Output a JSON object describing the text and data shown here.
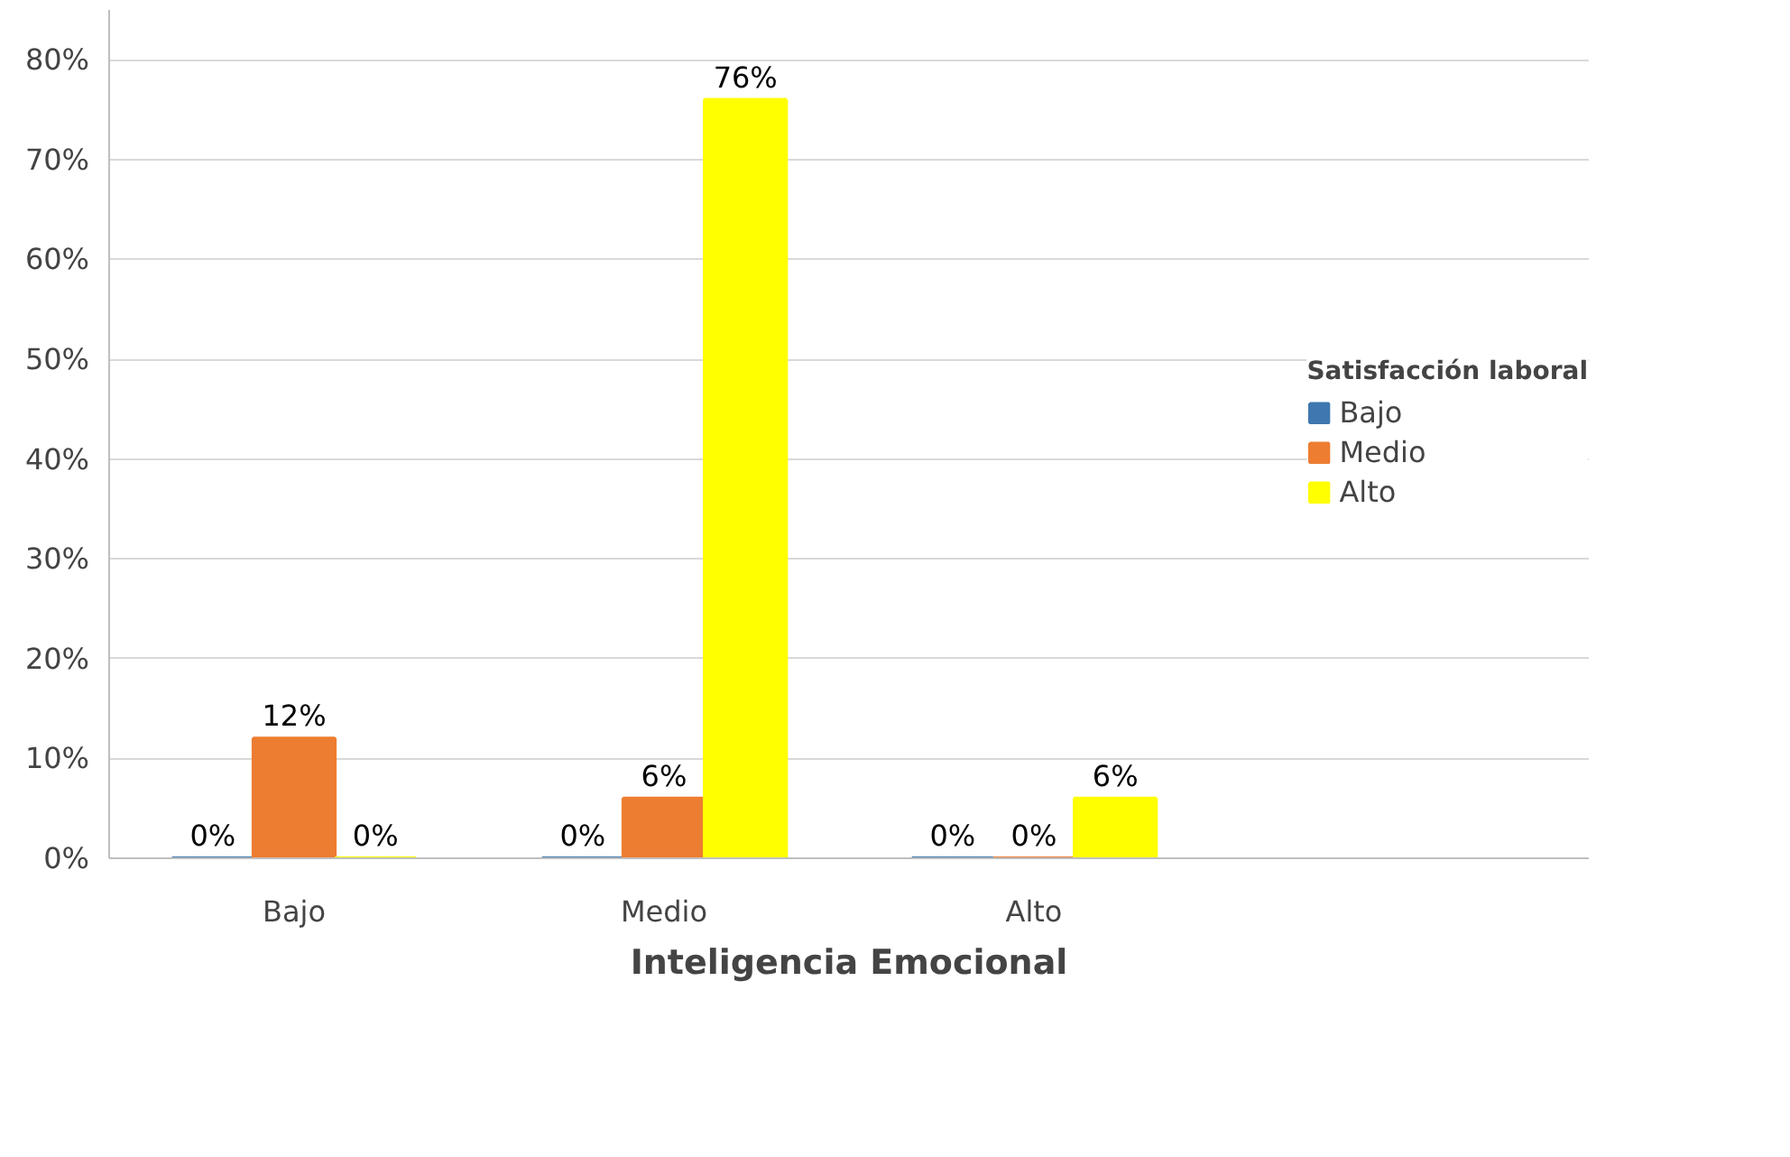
{
  "chart_data": {
    "type": "bar",
    "xlabel": "Inteligencia Emocional",
    "legend_title": "Satisfacción laboral",
    "categories": [
      "Bajo",
      "Medio",
      "Alto"
    ],
    "series": [
      {
        "name": "Bajo",
        "color": "#3f77b0",
        "values": [
          0,
          0,
          0
        ],
        "value_labels": [
          "0%",
          "0%",
          "0%"
        ]
      },
      {
        "name": "Medio",
        "color": "#ed7d31",
        "values": [
          12,
          6,
          0
        ],
        "value_labels": [
          "12%",
          "6%",
          "0%"
        ]
      },
      {
        "name": "Alto",
        "color": "#ffff00",
        "values": [
          0,
          76,
          6
        ],
        "value_labels": [
          "0%",
          "76%",
          "6%"
        ]
      }
    ],
    "ylim": [
      0,
      85
    ],
    "yticks": [
      {
        "value": 0,
        "label": "0%"
      },
      {
        "value": 10,
        "label": "10%"
      },
      {
        "value": 20,
        "label": "20%"
      },
      {
        "value": 30,
        "label": "30%"
      },
      {
        "value": 40,
        "label": "40%"
      },
      {
        "value": 50,
        "label": "50%"
      },
      {
        "value": 60,
        "label": "60%"
      },
      {
        "value": 70,
        "label": "70%"
      },
      {
        "value": 80,
        "label": "80%"
      }
    ],
    "grid": "y",
    "legend": "right"
  }
}
